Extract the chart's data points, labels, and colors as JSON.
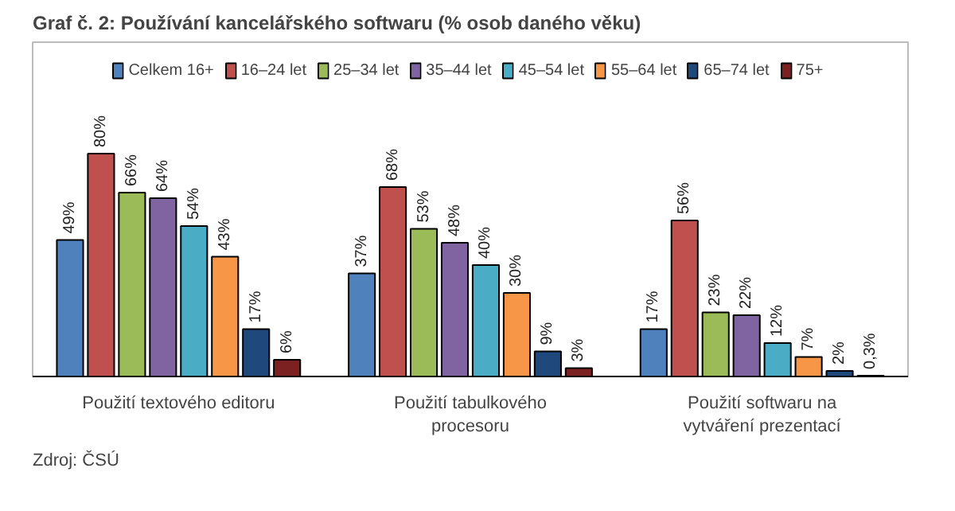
{
  "chart_data": {
    "type": "bar",
    "title": "Graf č. 2: Používání kancelářského softwaru (% osob daného věku)",
    "categories": [
      "Použití textového editoru",
      "Použití tabulkového procesoru",
      "Použití softwaru na vytváření prezentací"
    ],
    "series": [
      {
        "name": "Celkem 16+",
        "color": "#4f81bd",
        "values": [
          49,
          37,
          17
        ],
        "value_labels": [
          "49%",
          "37%",
          "17%"
        ]
      },
      {
        "name": "16–24 let",
        "color": "#c0504d",
        "values": [
          80,
          68,
          56
        ],
        "value_labels": [
          "80%",
          "68%",
          "56%"
        ]
      },
      {
        "name": "25–34 let",
        "color": "#9bbb59",
        "values": [
          66,
          53,
          23
        ],
        "value_labels": [
          "66%",
          "53%",
          "23%"
        ]
      },
      {
        "name": "35–44 let",
        "color": "#8064a2",
        "values": [
          64,
          48,
          22
        ],
        "value_labels": [
          "64%",
          "48%",
          "22%"
        ]
      },
      {
        "name": "45–54 let",
        "color": "#4bacc6",
        "values": [
          54,
          40,
          12
        ],
        "value_labels": [
          "54%",
          "40%",
          "12%"
        ]
      },
      {
        "name": "55–64 let",
        "color": "#f79646",
        "values": [
          43,
          30,
          7
        ],
        "value_labels": [
          "43%",
          "30%",
          "7%"
        ]
      },
      {
        "name": "65–74 let",
        "color": "#1f497d",
        "values": [
          17,
          9,
          2
        ],
        "value_labels": [
          "17%",
          "9%",
          "2%"
        ]
      },
      {
        "name": "75+",
        "color": "#7b2121",
        "values": [
          6,
          3,
          0.3
        ],
        "value_labels": [
          "6%",
          "3%",
          "0,3%"
        ]
      }
    ],
    "legend": "top",
    "grid": false,
    "annotations": [
      "Zdroj: ČSÚ"
    ]
  }
}
